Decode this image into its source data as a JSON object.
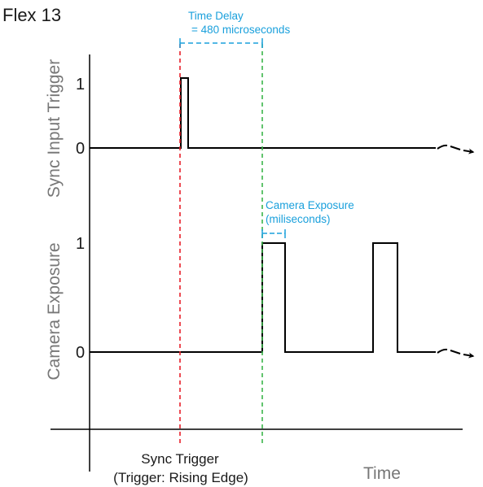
{
  "title": "Flex 13",
  "signals": {
    "sync_input": {
      "label": "Sync Input Trigger",
      "level_high": "1",
      "level_low": "0"
    },
    "camera_exposure": {
      "label": "Camera Exposure",
      "level_high": "1",
      "level_low": "0"
    }
  },
  "annotations": {
    "time_delay": {
      "line1": "Time Delay",
      "line2": "= 480 microseconds"
    },
    "exposure_duration": {
      "line1": "Camera Exposure",
      "line2": "(miliseconds)"
    }
  },
  "bottom": {
    "sync_trigger_line1": "Sync Trigger",
    "sync_trigger_line2": "(Trigger:  Rising Edge)",
    "time_label": "Time"
  },
  "colors": {
    "trigger_marker": "#e8202a",
    "exposure_start_marker": "#3bb54a",
    "annotation": "#1aa0dc",
    "waveform": "#000000"
  }
}
